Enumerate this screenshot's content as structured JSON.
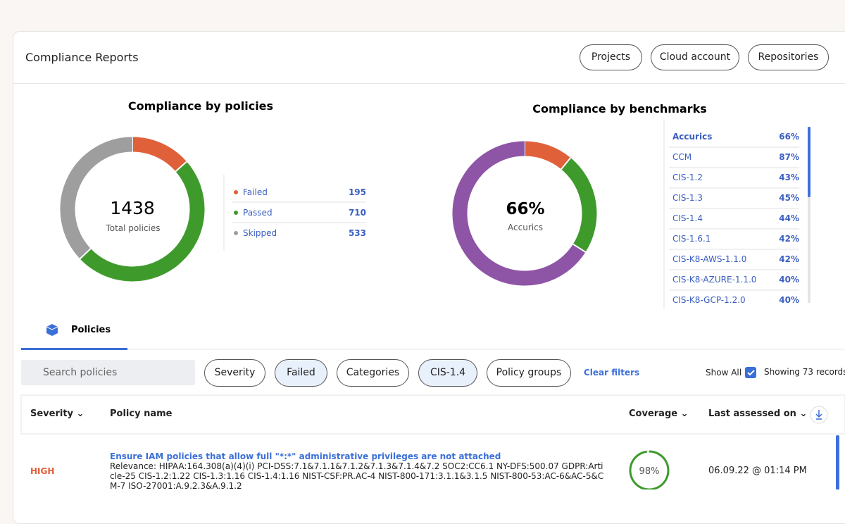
{
  "header": {
    "title": "Compliance Reports",
    "buttons": [
      "Projects",
      "Cloud account",
      "Repositories"
    ]
  },
  "policies_chart": {
    "title": "Compliance by policies",
    "center_value": "1438",
    "center_label": "Total policies",
    "legend": [
      {
        "name": "Failed",
        "value": 195,
        "color": "#e0603a"
      },
      {
        "name": "Passed",
        "value": 710,
        "color": "#3f9a2c"
      },
      {
        "name": "Skipped",
        "value": 533,
        "color": "#9e9e9e"
      }
    ]
  },
  "benchmarks_chart": {
    "title": "Compliance by benchmarks",
    "center_value": "66%",
    "center_label": "Accurics",
    "segments": [
      {
        "value": 11,
        "color": "#e0603a"
      },
      {
        "value": 23,
        "color": "#3f9a2c"
      },
      {
        "value": 66,
        "color": "#8e54a6"
      }
    ],
    "rows": [
      [
        "Accurics",
        "66%"
      ],
      [
        "CCM",
        "87%"
      ],
      [
        "CIS-1.2",
        "43%"
      ],
      [
        "CIS-1.3",
        "45%"
      ],
      [
        "CIS-1.4",
        "44%"
      ],
      [
        "CIS-1.6.1",
        "42%"
      ],
      [
        "CIS-K8-AWS-1.1.0",
        "42%"
      ],
      [
        "CIS-K8-AZURE-1.1.0",
        "40%"
      ],
      [
        "CIS-K8-GCP-1.2.0",
        "40%"
      ]
    ]
  },
  "tab": "Policies",
  "filters": {
    "search_placeholder": "Search policies",
    "chips": [
      "Severity",
      "Failed",
      "Categories",
      "CIS-1.4",
      "Policy groups"
    ],
    "clear": "Clear filters",
    "show_all": "Show All",
    "records": "Showing 73 records"
  },
  "table": {
    "headers": [
      "Severity",
      "Policy name",
      "Coverage",
      "Last assessed on"
    ],
    "rows": [
      {
        "severity": "HIGH",
        "name": "Ensure IAM policies that allow full \"*:*\" administrative privileges are not attached",
        "relevance": "Relevance: HIPAA:164.308(a)(4)(i) PCI-DSS:7.1&7.1.1&7.1.2&7.1.3&7.1.4&7.2 SOC2:CC6.1 NY-DFS:500.07 GDPR:Article-25 CIS-1.2:1.22 CIS-1.3:1.16 CIS-1.4:1.16 NIST-CSF:PR.AC-4 NIST-800-171:3.1.1&3.1.5 NIST-800-53:AC-6&AC-5&CM-7 ISO-27001:A.9.2.3&A.9.1.2",
        "coverage": 98,
        "coverage_label": "98%",
        "assessed": "06.09.22 @ 01:14 PM"
      }
    ]
  }
}
